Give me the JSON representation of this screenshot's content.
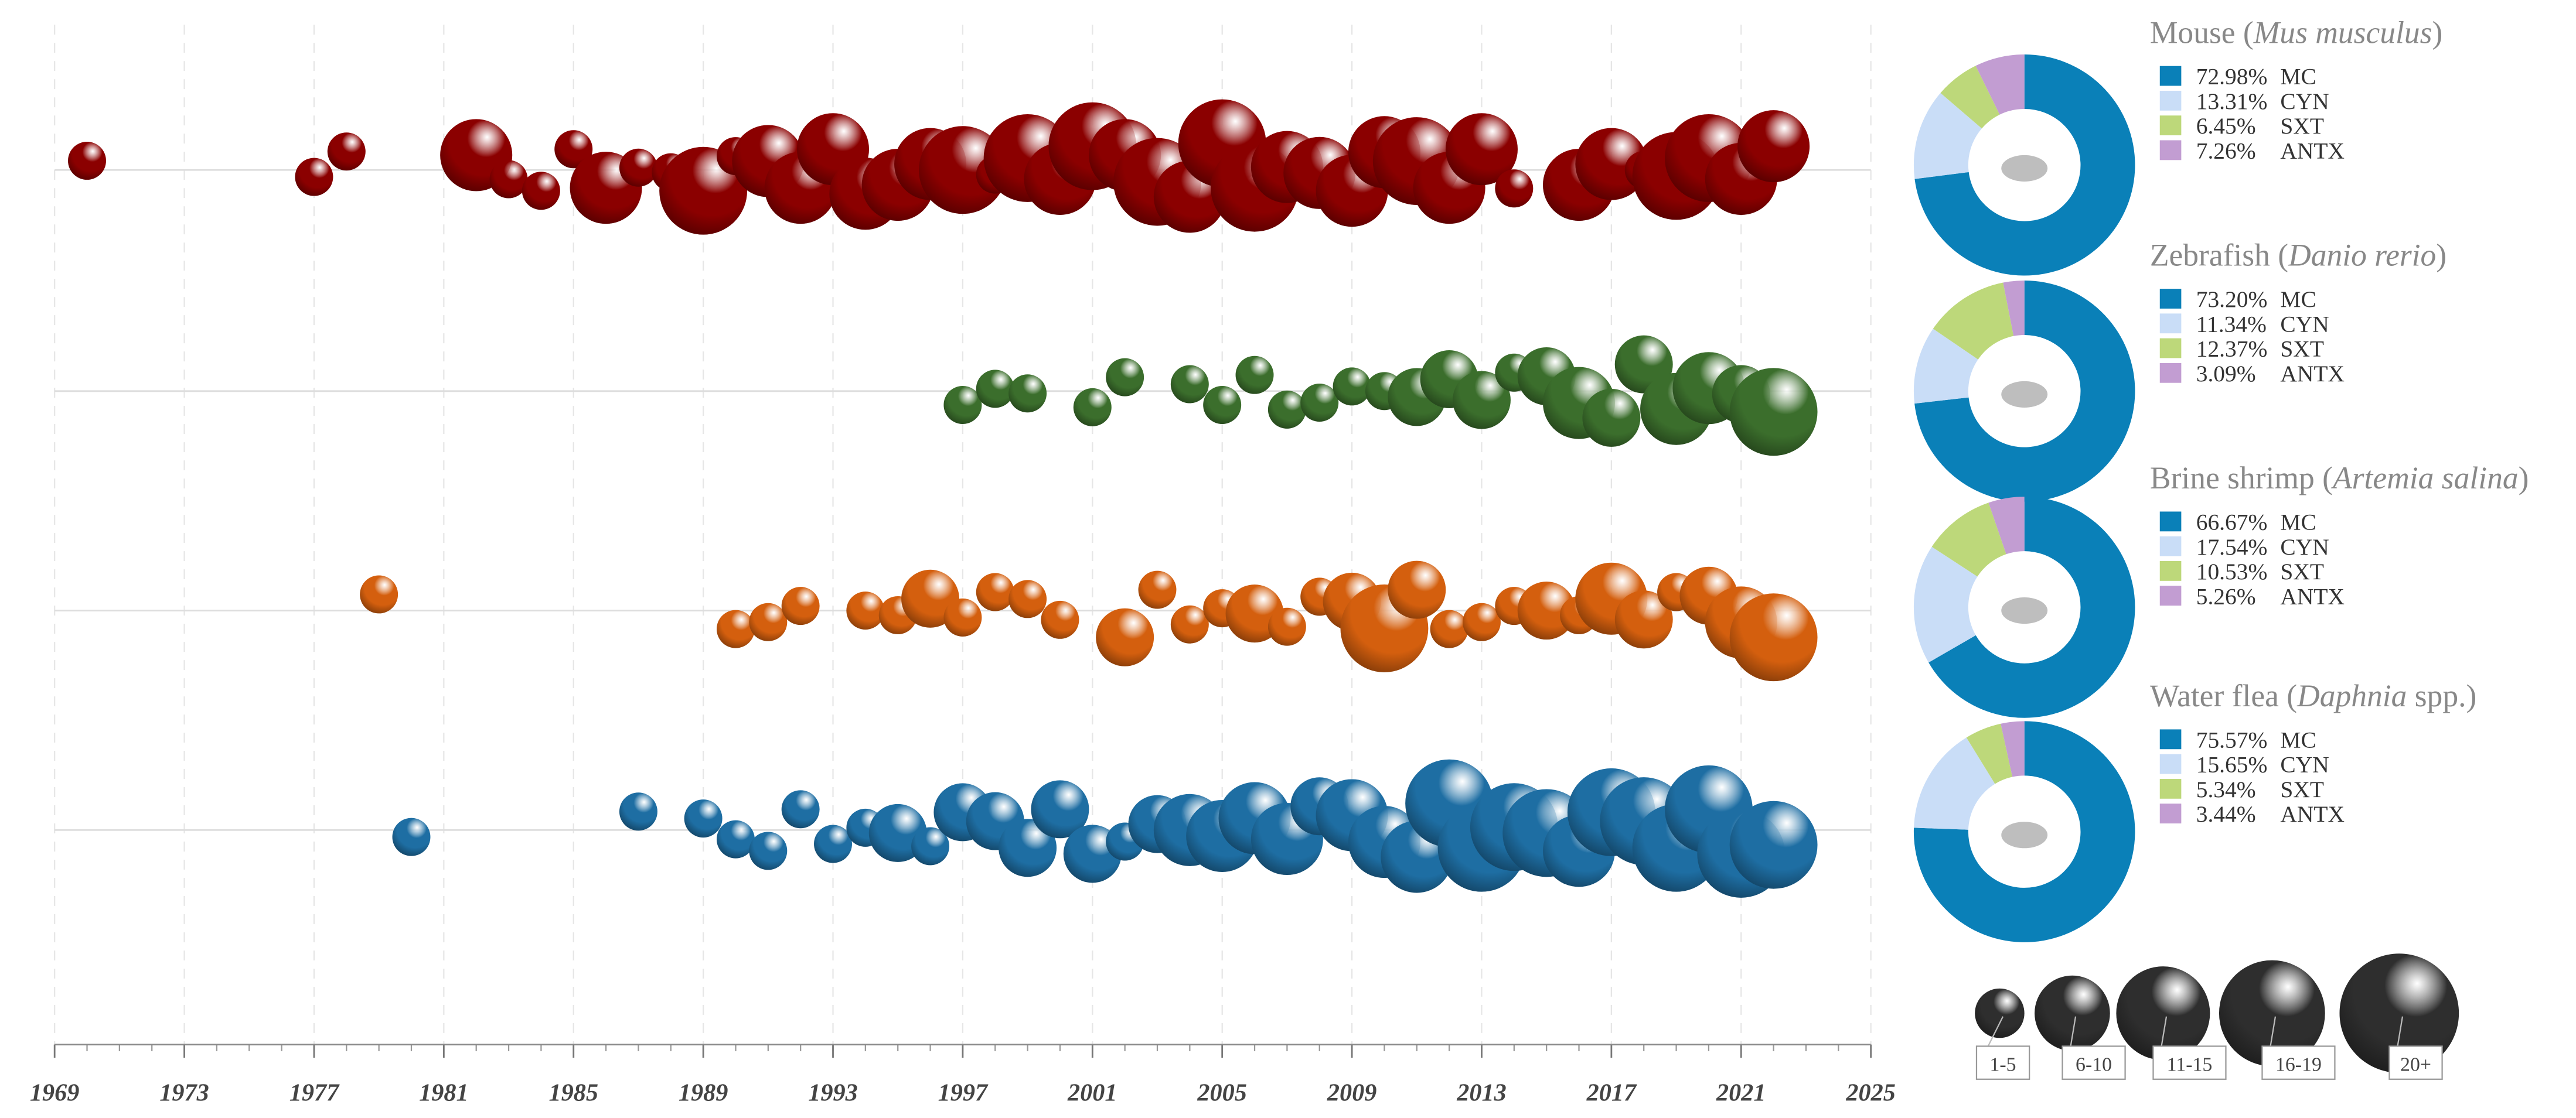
{
  "chart_data": [
    {
      "type": "bubble_timeline",
      "xlim": [
        1969,
        2025
      ],
      "xticks": [
        1969,
        1973,
        1977,
        1981,
        1985,
        1989,
        1993,
        1997,
        2001,
        2005,
        2009,
        2013,
        2017,
        2021,
        2025
      ],
      "series": [
        {
          "color": "#8b0000",
          "x": [
            1970,
            1977,
            1978,
            1982,
            1983,
            1984,
            1985,
            1986,
            1987,
            1988,
            1989,
            1990,
            1991,
            1992,
            1993,
            1994,
            1995,
            1996,
            1997,
            1998,
            1999,
            2000,
            2001,
            2002,
            2003,
            2004,
            2005,
            2006,
            2007,
            2008,
            2009,
            2010,
            2011,
            2012,
            2013,
            2014,
            2016,
            2017,
            2018,
            2019,
            2020,
            2021,
            2022
          ],
          "sizes": [
            3,
            3,
            3,
            13,
            3,
            3,
            3,
            13,
            3,
            3,
            20,
            3,
            13,
            13,
            13,
            13,
            13,
            13,
            20,
            3,
            20,
            13,
            20,
            13,
            20,
            13,
            20,
            20,
            13,
            13,
            13,
            13,
            20,
            13,
            13,
            3,
            13,
            13,
            3,
            20,
            20,
            13,
            13
          ]
        },
        {
          "color": "#3b6e2c",
          "x": [
            1997,
            1998,
            1999,
            2001,
            2002,
            2004,
            2005,
            2006,
            2007,
            2008,
            2009,
            2010,
            2011,
            2012,
            2013,
            2014,
            2015,
            2016,
            2017,
            2018,
            2019,
            2020,
            2021,
            2022
          ],
          "sizes": [
            3,
            3,
            3,
            3,
            3,
            3,
            3,
            3,
            3,
            3,
            3,
            3,
            8,
            8,
            8,
            3,
            8,
            13,
            8,
            8,
            13,
            13,
            8,
            20
          ]
        },
        {
          "color": "#d45f0e",
          "x": [
            1979,
            1990,
            1991,
            1992,
            1994,
            1995,
            1996,
            1997,
            1998,
            1999,
            2000,
            2002,
            2003,
            2004,
            2005,
            2006,
            2007,
            2008,
            2009,
            2010,
            2011,
            2012,
            2013,
            2014,
            2015,
            2016,
            2017,
            2018,
            2019,
            2020,
            2021,
            2022
          ],
          "sizes": [
            3,
            3,
            3,
            3,
            3,
            3,
            8,
            3,
            3,
            3,
            3,
            8,
            3,
            3,
            3,
            8,
            3,
            3,
            8,
            20,
            8,
            3,
            3,
            3,
            8,
            3,
            13,
            8,
            3,
            8,
            13,
            20
          ]
        },
        {
          "color": "#1e6ea3",
          "x": [
            1980,
            1987,
            1989,
            1990,
            1991,
            1992,
            1993,
            1994,
            1995,
            1996,
            1997,
            1998,
            1999,
            2000,
            2001,
            2002,
            2003,
            2004,
            2005,
            2006,
            2007,
            2008,
            2009,
            2010,
            2011,
            2012,
            2013,
            2014,
            2015,
            2016,
            2017,
            2018,
            2019,
            2020,
            2021,
            2022
          ],
          "sizes": [
            3,
            3,
            3,
            3,
            3,
            3,
            3,
            3,
            8,
            3,
            8,
            8,
            8,
            8,
            8,
            3,
            8,
            13,
            13,
            13,
            13,
            8,
            13,
            13,
            13,
            20,
            20,
            20,
            20,
            13,
            20,
            20,
            20,
            20,
            20,
            20
          ]
        }
      ],
      "size_legend": [
        {
          "label": "1-5",
          "size": 3
        },
        {
          "label": "6-10",
          "size": 8
        },
        {
          "label": "11-15",
          "size": 13
        },
        {
          "label": "16-19",
          "size": 17
        },
        {
          "label": "20+",
          "size": 22
        }
      ]
    },
    {
      "type": "donut",
      "title_parts": [
        "Mouse (",
        "Mus musculus",
        ")"
      ],
      "categories": [
        "MC",
        "CYN",
        "SXT",
        "ANTX"
      ],
      "colors": [
        "#0a80b8",
        "#c9ddf7",
        "#bdd87a",
        "#c29dd2"
      ],
      "values": [
        72.98,
        13.31,
        6.45,
        7.26
      ],
      "value_labels": [
        "72.98%",
        "13.31%",
        "6.45%",
        "7.26%"
      ]
    },
    {
      "type": "donut",
      "title_parts": [
        "Zebrafish (",
        "Danio rerio",
        ")"
      ],
      "categories": [
        "MC",
        "CYN",
        "SXT",
        "ANTX"
      ],
      "colors": [
        "#0a80b8",
        "#c9ddf7",
        "#bdd87a",
        "#c29dd2"
      ],
      "values": [
        73.2,
        11.34,
        12.37,
        3.09
      ],
      "value_labels": [
        "73.20%",
        "11.34%",
        "12.37%",
        "3.09%"
      ]
    },
    {
      "type": "donut",
      "title_parts": [
        "Brine shrimp (",
        "Artemia salina",
        ")"
      ],
      "categories": [
        "MC",
        "CYN",
        "SXT",
        "ANTX"
      ],
      "colors": [
        "#0a80b8",
        "#c9ddf7",
        "#bdd87a",
        "#c29dd2"
      ],
      "values": [
        66.67,
        17.54,
        10.53,
        5.26
      ],
      "value_labels": [
        "66.67%",
        "17.54%",
        "10.53%",
        "5.26%"
      ]
    },
    {
      "type": "donut",
      "title_parts": [
        "Water flea (",
        "Daphnia",
        " spp.)"
      ],
      "categories": [
        "MC",
        "CYN",
        "SXT",
        "ANTX"
      ],
      "colors": [
        "#0a80b8",
        "#c9ddf7",
        "#bdd87a",
        "#c29dd2"
      ],
      "values": [
        75.57,
        15.65,
        5.34,
        3.44
      ],
      "value_labels": [
        "75.57%",
        "15.65%",
        "5.34%",
        "3.44%"
      ]
    }
  ]
}
